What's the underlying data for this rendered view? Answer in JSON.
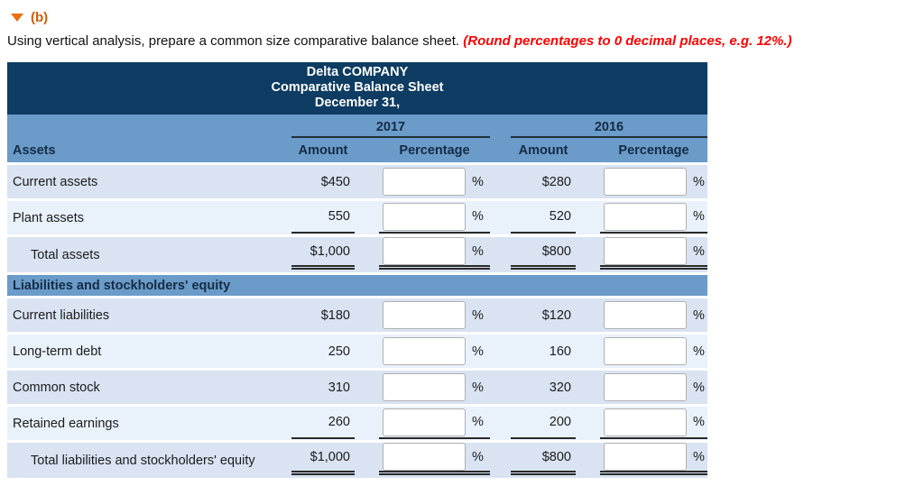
{
  "section_header": {
    "label": "(b)"
  },
  "instruction": {
    "normal_text": "Using vertical analysis, prepare a common size comparative balance sheet. ",
    "emphasized_text": "(Round percentages to 0 decimal places, e.g. 12%.)"
  },
  "colors": {
    "accent_orange": "#e8700f",
    "instruction_red": "#ff0000",
    "header_navy": "#0e3c62",
    "band_blue": "#6b9bc8",
    "row_shade_dark": "#d9e3f2",
    "row_shade_light": "#e9f1fb"
  },
  "table": {
    "title_lines": [
      "Delta COMPANY",
      "Comparative Balance Sheet",
      "December 31,"
    ],
    "year_columns": [
      {
        "label": "2017"
      },
      {
        "label": "2016"
      }
    ],
    "column_headers": {
      "first": "Assets",
      "amount": "Amount",
      "percentage": "Percentage"
    },
    "percent_suffix": "%",
    "inputs": {
      "value": "",
      "placeholder": ""
    },
    "rows": [
      {
        "type": "data",
        "label": "Current assets",
        "amount_2017": "$450",
        "amount_2016": "$280",
        "shade": "dark",
        "rule": "none",
        "indent": false
      },
      {
        "type": "data",
        "label": "Plant assets",
        "amount_2017": "550",
        "amount_2016": "520",
        "shade": "light",
        "rule": "single",
        "indent": false
      },
      {
        "type": "data",
        "label": "Total assets",
        "amount_2017": "$1,000",
        "amount_2016": "$800",
        "shade": "dark",
        "rule": "double",
        "indent": true
      },
      {
        "type": "section",
        "label": "Liabilities and stockholders' equity"
      },
      {
        "type": "data",
        "label": "Current liabilities",
        "amount_2017": "$180",
        "amount_2016": "$120",
        "shade": "dark",
        "rule": "none",
        "indent": false
      },
      {
        "type": "data",
        "label": "Long-term debt",
        "amount_2017": "250",
        "amount_2016": "160",
        "shade": "light",
        "rule": "none",
        "indent": false
      },
      {
        "type": "data",
        "label": "Common stock",
        "amount_2017": "310",
        "amount_2016": "320",
        "shade": "dark",
        "rule": "none",
        "indent": false
      },
      {
        "type": "data",
        "label": "Retained earnings",
        "amount_2017": "260",
        "amount_2016": "200",
        "shade": "light",
        "rule": "single",
        "indent": false
      },
      {
        "type": "data",
        "label": "Total liabilities and stockholders' equity",
        "amount_2017": "$1,000",
        "amount_2016": "$800",
        "shade": "dark",
        "rule": "double",
        "indent": true
      }
    ]
  }
}
